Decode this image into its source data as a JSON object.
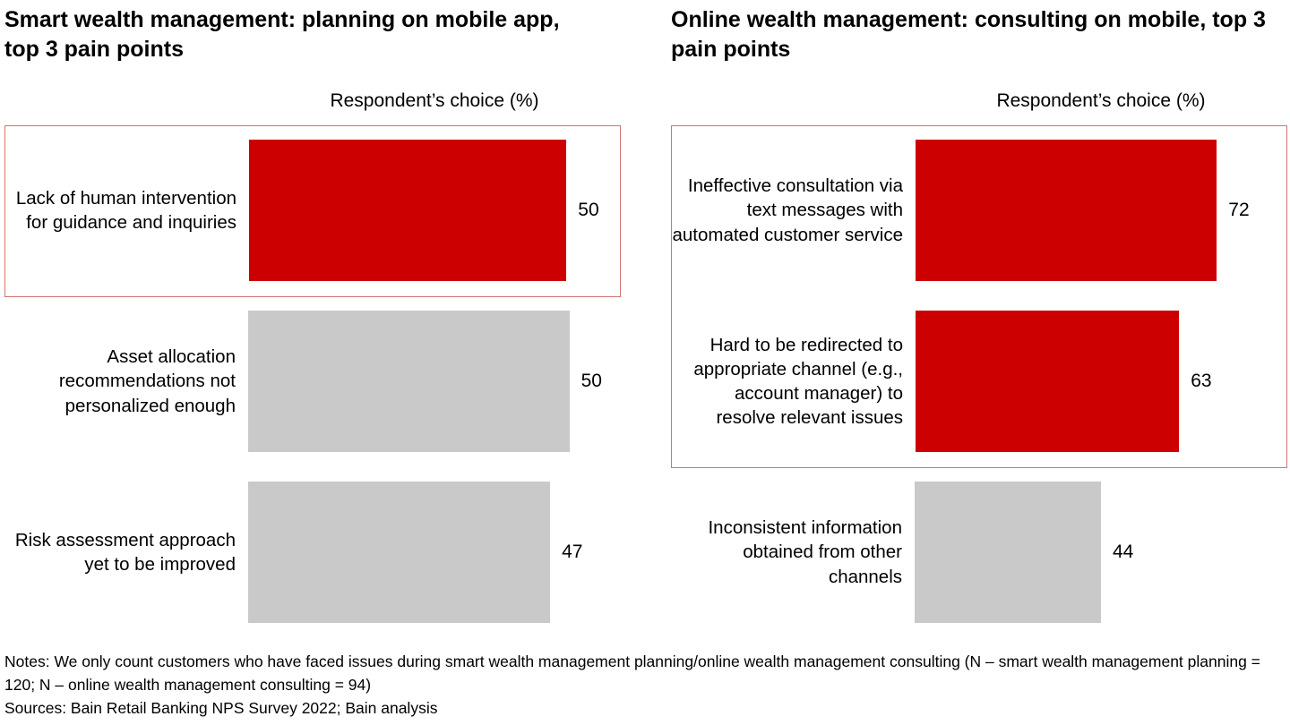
{
  "colors": {
    "bar_red": "#cc0000",
    "bar_gray": "#c9c9c9",
    "highlight_box_border": "#d4736e"
  },
  "chart_data": [
    {
      "type": "bar",
      "orientation": "horizontal",
      "title": "Smart wealth management: planning on mobile app, top 3 pain points",
      "axis_label": "Respondent’s choice (%)",
      "categories": [
        "Lack of human intervention for guidance and inquiries",
        "Asset allocation recommendations not personalized enough",
        "Risk assessment approach yet to be improved"
      ],
      "values": [
        50,
        50,
        47
      ],
      "bar_colors": [
        "#cc0000",
        "#c9c9c9",
        "#c9c9c9"
      ],
      "highlighted_rows": [
        0
      ],
      "xlim": [
        0,
        58
      ],
      "grid": false,
      "legend": false
    },
    {
      "type": "bar",
      "orientation": "horizontal",
      "title": "Online wealth management: consulting on mobile, top 3 pain points",
      "axis_label": "Respondent’s choice (%)",
      "categories": [
        "Ineffective consultation via text messages with automated customer service",
        "Hard to be redirected to appropriate channel (e.g., account manager) to resolve relevant issues",
        "Inconsistent information obtained from other channels"
      ],
      "values": [
        72,
        63,
        44
      ],
      "bar_colors": [
        "#cc0000",
        "#cc0000",
        "#c9c9c9"
      ],
      "highlighted_rows": [
        0,
        1
      ],
      "xlim": [
        0,
        88
      ],
      "grid": false,
      "legend": false
    }
  ],
  "footer": {
    "notes": "Notes: We only count customers who have faced issues during smart wealth management planning/online wealth management consulting (N – smart wealth management planning = 120; N – online wealth management consulting = 94)",
    "sources": "Sources: Bain Retail Banking NPS Survey 2022; Bain analysis"
  }
}
